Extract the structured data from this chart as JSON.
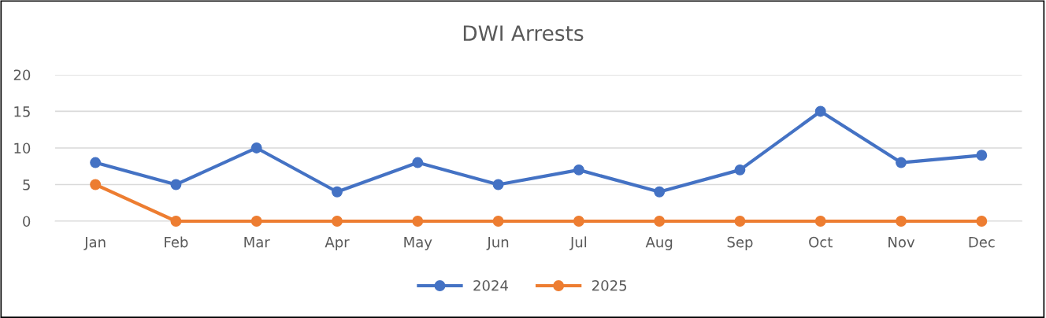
{
  "chart_data": {
    "type": "line",
    "title": "DWI Arrests",
    "categories": [
      "Jan",
      "Feb",
      "Mar",
      "Apr",
      "May",
      "Jun",
      "Jul",
      "Aug",
      "Sep",
      "Oct",
      "Nov",
      "Dec"
    ],
    "series": [
      {
        "name": "2024",
        "color": "#4472c4",
        "values": [
          8,
          5,
          10,
          4,
          8,
          5,
          7,
          4,
          7,
          15,
          8,
          9
        ]
      },
      {
        "name": "2025",
        "color": "#ed7d31",
        "values": [
          5,
          0,
          0,
          0,
          0,
          0,
          0,
          0,
          0,
          0,
          0,
          0
        ]
      }
    ],
    "ylim": [
      0,
      20
    ],
    "yticks": [
      0,
      5,
      10,
      15,
      20
    ],
    "grid": "y",
    "legend": "bottom",
    "marker": "circle",
    "line_style": "solid"
  }
}
